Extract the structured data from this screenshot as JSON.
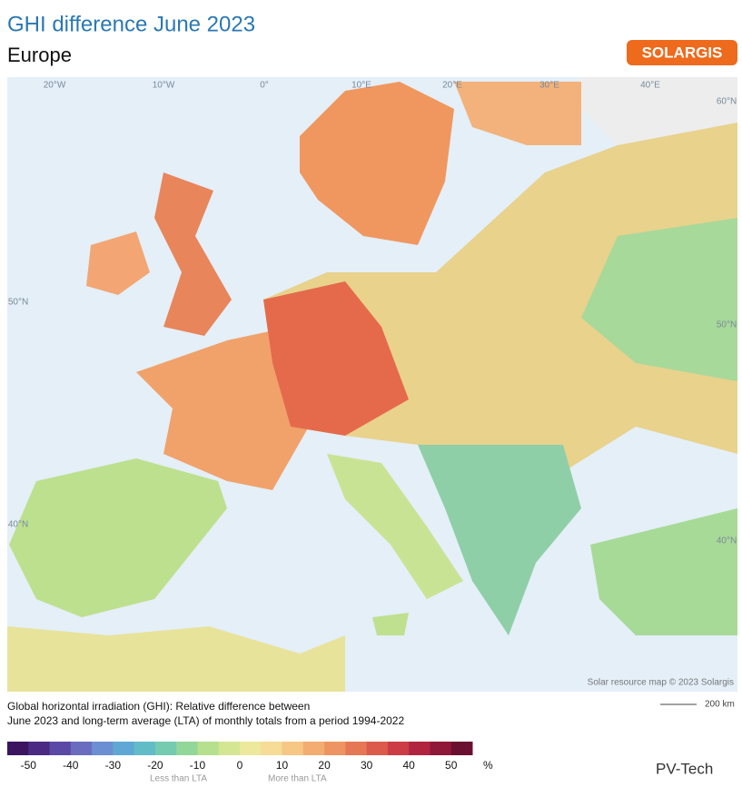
{
  "header": {
    "title": "GHI difference June 2023",
    "subtitle": "Europe",
    "logo": "SOLARGIS"
  },
  "map": {
    "graticule_labels": [
      "20°W",
      "10°W",
      "0°",
      "10°E",
      "20°E",
      "30°E",
      "40°E",
      "60°N",
      "50°N",
      "50°N",
      "40°N",
      "40°N"
    ],
    "attribution": "Solar resource map © 2023 Solargis",
    "scale": "200 km"
  },
  "caption": [
    "Global horizontal irradiation (GHI): Relative difference between",
    "June 2023 and long-term average (LTA) of monthly totals from a period 1994-2022"
  ],
  "legend": {
    "ticks": [
      -50,
      -40,
      -30,
      -20,
      -10,
      0,
      10,
      20,
      30,
      40,
      50
    ],
    "unit": "%",
    "colors": [
      "#3b1560",
      "#4a2a82",
      "#5a4aa6",
      "#6a6cc0",
      "#6b8fd2",
      "#5fa8d6",
      "#62bcc8",
      "#74cbb0",
      "#93d699",
      "#b6df8e",
      "#d4e692",
      "#ece89c",
      "#f6dc96",
      "#f6c785",
      "#f3ad72",
      "#ee9462",
      "#e67755",
      "#dc5a4b",
      "#cc3c44",
      "#b1243f",
      "#901838",
      "#6b0f30"
    ],
    "less": "Less than LTA",
    "more": "More than LTA"
  },
  "watermark": "PV-Tech"
}
